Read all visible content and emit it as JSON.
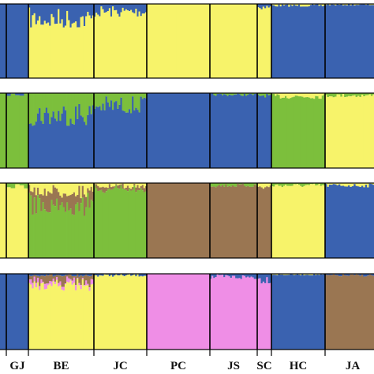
{
  "chart_data": {
    "type": "bar",
    "stacked": true,
    "ylim": [
      0,
      1
    ],
    "colors": {
      "blue": "#3a62b0",
      "yellow": "#f7f36a",
      "green": "#7cbf3c",
      "brown": "#9a7652",
      "pink": "#ef8ee6"
    },
    "populations": [
      {
        "name": "",
        "count": 4
      },
      {
        "name": "GJ",
        "count": 5
      },
      {
        "name": "BE",
        "count": 38
      },
      {
        "name": "JC",
        "count": 32
      },
      {
        "name": "PC",
        "count": 38
      },
      {
        "name": "JS",
        "count": 28
      },
      {
        "name": "SC",
        "count": 8
      },
      {
        "name": "HC",
        "count": 32
      },
      {
        "name": "JA",
        "count": 29
      }
    ],
    "panels": [
      {
        "K": 2,
        "population_composition": [
          {
            "blue": 1.0
          },
          {
            "blue": 1.0
          },
          {
            "yellow": 0.8,
            "blue": 0.2
          },
          {
            "yellow": 0.9,
            "blue": 0.1
          },
          {
            "yellow": 1.0
          },
          {
            "yellow": 1.0
          },
          {
            "yellow": 0.96,
            "blue": 0.04
          },
          {
            "blue": 0.98,
            "yellow": 0.02
          },
          {
            "blue": 0.99,
            "yellow": 0.01
          }
        ]
      },
      {
        "K": 3,
        "population_composition": [
          {
            "green": 1.0
          },
          {
            "green": 0.98,
            "blue": 0.02
          },
          {
            "blue": 0.72,
            "green": 0.28
          },
          {
            "blue": 0.84,
            "green": 0.16
          },
          {
            "blue": 1.0
          },
          {
            "blue": 0.98,
            "green": 0.02
          },
          {
            "blue": 0.97,
            "green": 0.03
          },
          {
            "green": 0.96,
            "yellow": 0.04
          },
          {
            "yellow": 0.97,
            "green": 0.03
          }
        ]
      },
      {
        "K": 4,
        "population_composition": [
          {
            "yellow": 1.0
          },
          {
            "yellow": 0.96,
            "green": 0.04
          },
          {
            "green": 0.7,
            "brown": 0.2,
            "yellow": 0.1
          },
          {
            "green": 0.92,
            "brown": 0.04,
            "yellow": 0.04
          },
          {
            "brown": 1.0
          },
          {
            "brown": 0.97,
            "green": 0.03
          },
          {
            "brown": 0.95,
            "yellow": 0.05
          },
          {
            "yellow": 0.97,
            "green": 0.03
          },
          {
            "blue": 0.97,
            "yellow": 0.03
          }
        ]
      },
      {
        "K": 5,
        "population_composition": [
          {
            "blue": 1.0
          },
          {
            "blue": 1.0
          },
          {
            "yellow": 0.86,
            "brown": 0.08,
            "pink": 0.04,
            "blue": 0.02
          },
          {
            "yellow": 0.98,
            "blue": 0.02
          },
          {
            "pink": 1.0
          },
          {
            "pink": 0.96,
            "blue": 0.04
          },
          {
            "pink": 0.93,
            "blue": 0.07
          },
          {
            "blue": 0.99,
            "yellow": 0.01
          },
          {
            "brown": 0.98,
            "blue": 0.02
          }
        ]
      }
    ]
  }
}
